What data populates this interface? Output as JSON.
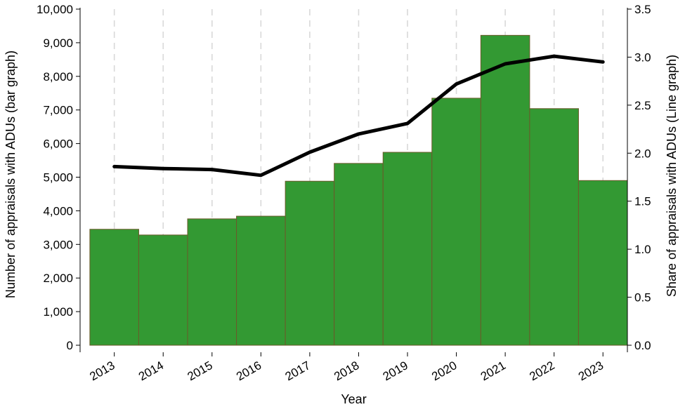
{
  "chart_data": {
    "type": "bar",
    "xlabel": "Year",
    "ylabel_left": "Number of appraisals with ADUs (bar graph)",
    "ylabel_right": "Share of appraisals with ADUs (Line graph)",
    "categories": [
      "2013",
      "2014",
      "2015",
      "2016",
      "2017",
      "2018",
      "2019",
      "2020",
      "2021",
      "2022",
      "2023"
    ],
    "series": [
      {
        "name": "",
        "type": "bar",
        "axis": "left",
        "values": [
          3450,
          3280,
          3760,
          3840,
          4880,
          5410,
          5740,
          7350,
          9220,
          7040,
          4900
        ]
      },
      {
        "name": "",
        "type": "line",
        "axis": "right",
        "values": [
          1.86,
          1.84,
          1.83,
          1.77,
          2.01,
          2.2,
          2.31,
          2.72,
          2.93,
          3.01,
          2.95
        ]
      }
    ],
    "ylim_left": [
      0,
      10000
    ],
    "yticks_left": [
      0,
      1000,
      2000,
      3000,
      4000,
      5000,
      6000,
      7000,
      8000,
      9000,
      10000
    ],
    "ytick_labels_left": [
      "0",
      "1,000",
      "2,000",
      "3,000",
      "4,000",
      "5,000",
      "6,000",
      "7,000",
      "8,000",
      "9,000",
      "10,000"
    ],
    "ylim_right": [
      0,
      3.5
    ],
    "yticks_right": [
      0,
      0.5,
      1,
      1.5,
      2,
      2.5,
      3,
      3.5
    ],
    "ytick_labels_right": [
      "0.0",
      "0.5",
      "1.0",
      "1.5",
      "2.0",
      "2.5",
      "3.0",
      "3.5"
    ],
    "grid": "vertical dashed",
    "legend": "none",
    "colors": {
      "bar_fill": "#339933",
      "bar_edge": "#6b5a2a",
      "line": "#000000",
      "grid": "#d9d9d9"
    }
  }
}
